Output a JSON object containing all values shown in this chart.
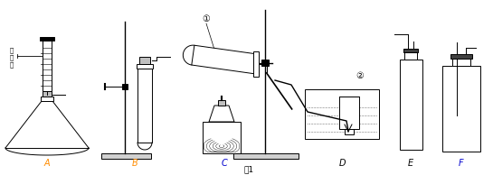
{
  "caption": "图1",
  "label_A": "A",
  "label_B": "B",
  "label_C": "C",
  "label_D": "D",
  "label_E": "E",
  "label_F": "F",
  "label_AB_color": "#FF8C00",
  "label_CF_color": "#0000CD",
  "chinese_label": "注\n射\n器",
  "bg_color": "#ffffff",
  "line_color": "#000000"
}
